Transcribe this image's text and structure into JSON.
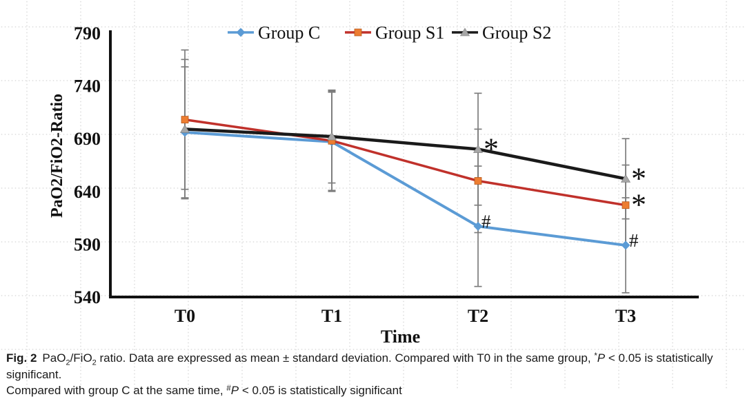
{
  "chart_data": {
    "type": "line",
    "title": "",
    "x": [
      "T0",
      "T1",
      "T2",
      "T3"
    ],
    "xlabel": "Time",
    "ylabel": "PaO2/FiO2-Ratio",
    "ylim": [
      540,
      790
    ],
    "yticks": [
      540,
      590,
      640,
      690,
      740,
      790
    ],
    "grid": "faint dotted background grid",
    "legend_position": "top-center",
    "error_bars": "plus-minus standard deviation, gray with caps",
    "series": [
      {
        "name": "Group C",
        "line_color": "#5B9BD5",
        "marker": "diamond",
        "marker_color": "#5B9BD5",
        "values": [
          696,
          687,
          607,
          589
        ],
        "sd": [
          62,
          47,
          57,
          45
        ]
      },
      {
        "name": "Group S1",
        "line_color": "#C0312B",
        "marker": "square",
        "marker_color": "#ED7D31",
        "values": [
          708,
          688,
          650,
          627
        ],
        "sd": [
          66,
          47,
          49,
          38
        ]
      },
      {
        "name": "Group S2",
        "line_color": "#1A1A1A",
        "marker": "triangle",
        "marker_color": "#A6A6A6",
        "values": [
          699,
          692,
          680,
          652
        ],
        "sd": [
          66,
          44,
          53,
          38
        ]
      }
    ],
    "annotations": [
      {
        "category": "T2",
        "series": "Group S2",
        "symbol": "*"
      },
      {
        "category": "T2",
        "series": "Group C",
        "symbol": "#"
      },
      {
        "category": "T3",
        "series": "Group S2",
        "symbol": "*"
      },
      {
        "category": "T3",
        "series": "Group S1",
        "symbol": "*"
      },
      {
        "category": "T3",
        "series": "Group C",
        "symbol": "#"
      }
    ]
  },
  "caption": {
    "label": "Fig. 2",
    "p1": "PaO",
    "sub1": "2",
    "p2": "/FiO",
    "sub2": "2",
    "p3": " ratio. Data are expressed as mean ± standard deviation. Compared with T0 in the same group, ",
    "sup1": "*",
    "pital1": "P",
    "p4": " < 0.05 is statistically significant.",
    "l2a": "Compared with group C at the same time, ",
    "sup2": "#",
    "pital2": "P",
    "p5": " < 0.05 is statistically significant"
  }
}
